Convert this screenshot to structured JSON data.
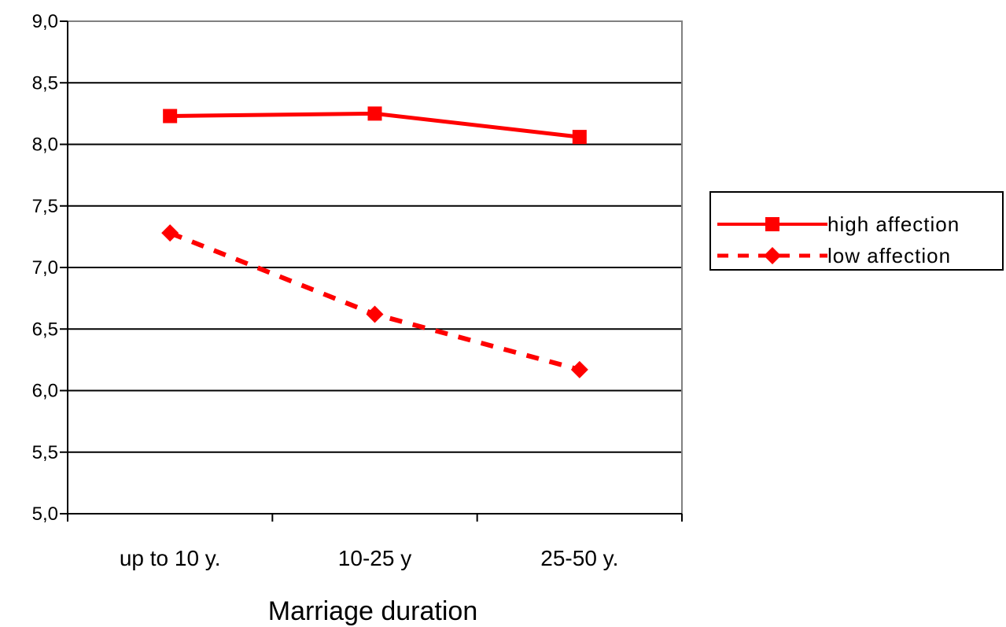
{
  "chart_data": {
    "type": "line",
    "categories": [
      "up to 10 y.",
      "10-25 y",
      "25-50 y."
    ],
    "series": [
      {
        "name": "high affection",
        "values": [
          8.23,
          8.25,
          8.06
        ],
        "color": "#ff0000",
        "marker": "square",
        "line": "solid"
      },
      {
        "name": "low affection",
        "values": [
          7.28,
          6.62,
          6.17
        ],
        "color": "#ff0000",
        "marker": "diamond",
        "line": "dashed"
      }
    ],
    "yticks": [
      "5,0",
      "5,5",
      "6,0",
      "6,5",
      "7,0",
      "7,5",
      "8,0",
      "8,5",
      "9,0"
    ],
    "ylim": [
      5.0,
      9.0
    ],
    "xlabel": "Marriage duration",
    "ylabel": "",
    "title": "",
    "grid": true,
    "legend_position": "right"
  }
}
